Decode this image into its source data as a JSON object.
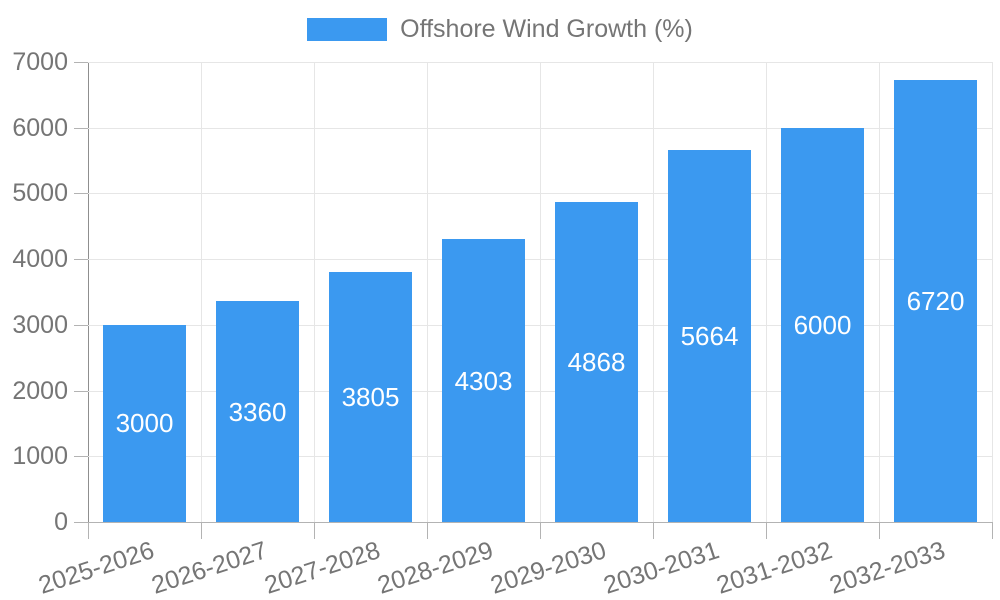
{
  "chart_data": {
    "type": "bar",
    "title": "Offshore Wind Growth (%)",
    "legend": {
      "position": "top",
      "entries": [
        "Offshore Wind Growth (%)"
      ]
    },
    "categories": [
      "2025-2026",
      "2026-2027",
      "2027-2028",
      "2028-2029",
      "2029-2030",
      "2030-2031",
      "2031-2032",
      "2032-2033"
    ],
    "series": [
      {
        "name": "Offshore Wind Growth (%)",
        "values": [
          3000,
          3360,
          3805,
          4303,
          4868,
          5664,
          6000,
          6720
        ]
      }
    ],
    "value_labels": [
      "3000",
      "3360",
      "3805",
      "4303",
      "4868",
      "5664",
      "6000",
      "6720"
    ],
    "xlabel": "",
    "ylabel": "",
    "ylim": [
      0,
      7000
    ],
    "yticks": [
      0,
      1000,
      2000,
      3000,
      4000,
      5000,
      6000,
      7000
    ],
    "grid": true,
    "x_label_rotation_deg": -18,
    "colors": {
      "bar": "#3B99F0",
      "grid": "#E6E6E6",
      "axis_line": "#B3B3B3",
      "y_axis_line": "#8F8F8F",
      "text": "#757575",
      "value_text": "#FFFFFF"
    }
  }
}
